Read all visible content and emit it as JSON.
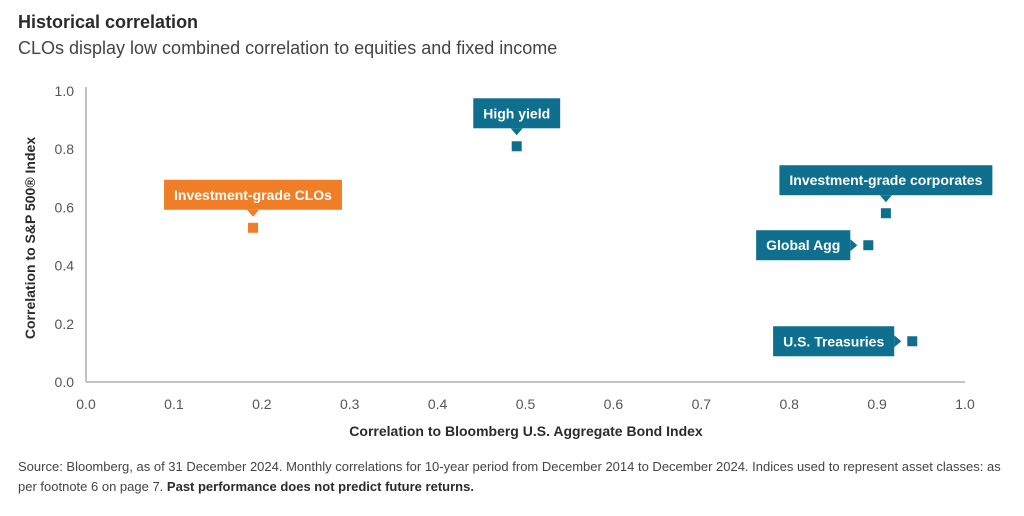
{
  "header": {
    "title": "Historical correlation",
    "subtitle": "CLOs display low combined correlation to equities and fixed income"
  },
  "chart_data": {
    "type": "scatter",
    "xlabel": "Correlation to Bloomberg U.S. Aggregate Bond Index",
    "ylabel": "Correlation to S&P 500® Index",
    "xlim": [
      0.0,
      1.0
    ],
    "ylim": [
      0.0,
      1.0
    ],
    "x_ticks": [
      "0.0",
      "0.1",
      "0.2",
      "0.3",
      "0.4",
      "0.5",
      "0.6",
      "0.7",
      "0.8",
      "0.9",
      "1.0"
    ],
    "y_ticks": [
      "0.0",
      "0.2",
      "0.4",
      "0.6",
      "0.8",
      "1.0"
    ],
    "grid": false,
    "points": [
      {
        "label": "Investment-grade CLOs",
        "x": 0.19,
        "y": 0.53,
        "color": "#f07e26",
        "callout": "above"
      },
      {
        "label": "High yield",
        "x": 0.49,
        "y": 0.81,
        "color": "#0e6f8e",
        "callout": "above"
      },
      {
        "label": "Investment-grade corporates",
        "x": 0.91,
        "y": 0.58,
        "color": "#0e6f8e",
        "callout": "above"
      },
      {
        "label": "Global Agg",
        "x": 0.89,
        "y": 0.47,
        "color": "#0e6f8e",
        "callout": "left"
      },
      {
        "label": "U.S. Treasuries",
        "x": 0.94,
        "y": 0.14,
        "color": "#0e6f8e",
        "callout": "left"
      }
    ]
  },
  "footnote": {
    "text": "Source: Bloomberg, as of 31 December 2024. Monthly correlations for 10-year period from December 2014 to December 2024. Indices used to represent asset classes: as per footnote 6 on page 7.",
    "bold": "Past performance does not predict future returns."
  }
}
